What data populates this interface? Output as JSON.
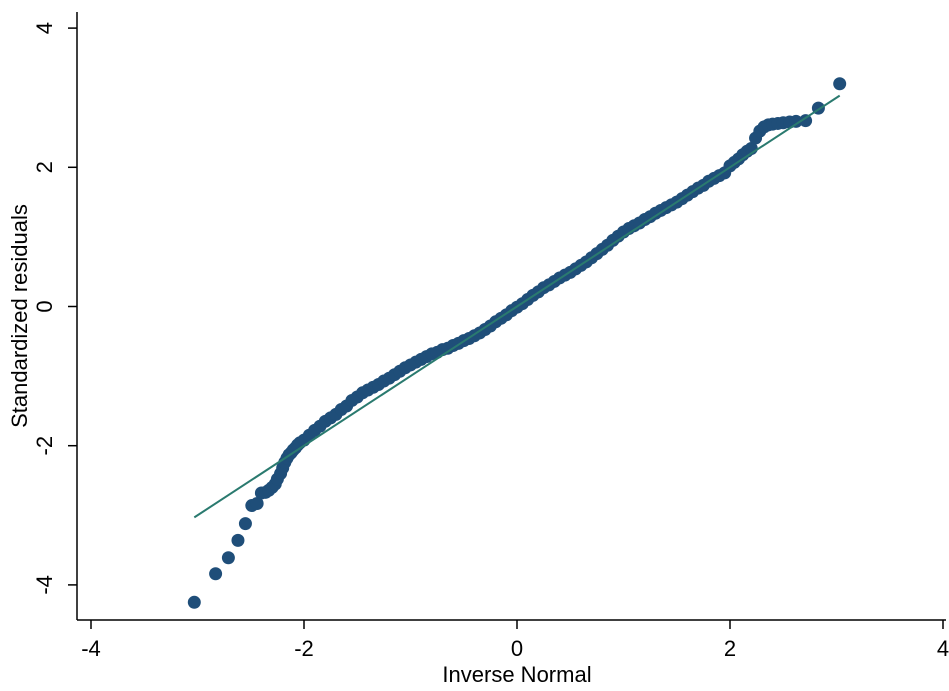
{
  "chart_data": {
    "type": "scatter",
    "title": "",
    "xlabel": "Inverse Normal",
    "ylabel": "Standardized residuals",
    "xlim": [
      -4,
      4
    ],
    "ylim": [
      -4,
      4
    ],
    "xticks": [
      -4,
      -2,
      0,
      2,
      4
    ],
    "yticks": [
      -4,
      -2,
      0,
      2,
      4
    ],
    "xtick_labels": [
      "-4",
      "-2",
      "0",
      "2",
      "4"
    ],
    "ytick_labels": [
      "-4",
      "-2",
      "0",
      "2",
      "4"
    ],
    "grid": false,
    "legend": "none",
    "colors": {
      "points": "#1f4e79",
      "reference_line": "#2a7a6f",
      "axis": "#000000"
    },
    "reference_line": {
      "x": [
        -3.03,
        3.03
      ],
      "y": [
        -3.03,
        3.03
      ]
    },
    "series": [
      {
        "x": [
          -3.03,
          -2.83,
          -2.71,
          -2.62,
          -2.55,
          -2.49,
          -2.44,
          -2.4,
          -2.36,
          -2.33,
          -2.3,
          -2.27,
          -2.25,
          -2.22,
          -2.2,
          -2.18,
          -2.16,
          -2.14,
          -2.12,
          -2.1,
          -2.08,
          -2.06,
          -2.04,
          -2.0,
          -1.95,
          -1.9,
          -1.85,
          -1.8,
          -1.75,
          -1.7,
          -1.65,
          -1.6,
          -1.55,
          -1.5,
          -1.45,
          -1.4,
          -1.35,
          -1.3,
          -1.25,
          -1.2,
          -1.15,
          -1.1,
          -1.05,
          -1.0,
          -0.95,
          -0.9,
          -0.85,
          -0.8,
          -0.75,
          -0.7,
          -0.65,
          -0.6,
          -0.55,
          -0.5,
          -0.45,
          -0.4,
          -0.35,
          -0.3,
          -0.25,
          -0.2,
          -0.15,
          -0.1,
          -0.05,
          0.0,
          0.05,
          0.1,
          0.15,
          0.2,
          0.25,
          0.3,
          0.35,
          0.4,
          0.45,
          0.5,
          0.55,
          0.6,
          0.65,
          0.7,
          0.75,
          0.8,
          0.85,
          0.9,
          0.95,
          1.0,
          1.05,
          1.1,
          1.15,
          1.2,
          1.25,
          1.3,
          1.35,
          1.4,
          1.45,
          1.5,
          1.55,
          1.6,
          1.65,
          1.7,
          1.75,
          1.8,
          1.85,
          1.9,
          1.95,
          2.0,
          2.04,
          2.08,
          2.12,
          2.16,
          2.2,
          2.24,
          2.28,
          2.32,
          2.36,
          2.4,
          2.45,
          2.5,
          2.56,
          2.62,
          2.71,
          2.83,
          3.03
        ],
        "y": [
          -4.25,
          -3.84,
          -3.61,
          -3.36,
          -3.12,
          -2.86,
          -2.83,
          -2.68,
          -2.67,
          -2.64,
          -2.6,
          -2.55,
          -2.48,
          -2.4,
          -2.32,
          -2.24,
          -2.18,
          -2.13,
          -2.1,
          -2.06,
          -2.03,
          -1.99,
          -1.96,
          -1.92,
          -1.85,
          -1.78,
          -1.72,
          -1.65,
          -1.6,
          -1.55,
          -1.48,
          -1.43,
          -1.35,
          -1.3,
          -1.24,
          -1.2,
          -1.16,
          -1.12,
          -1.07,
          -1.03,
          -0.98,
          -0.93,
          -0.88,
          -0.84,
          -0.8,
          -0.76,
          -0.72,
          -0.68,
          -0.66,
          -0.62,
          -0.6,
          -0.56,
          -0.53,
          -0.49,
          -0.46,
          -0.42,
          -0.38,
          -0.33,
          -0.28,
          -0.22,
          -0.17,
          -0.12,
          -0.06,
          -0.01,
          0.04,
          0.1,
          0.16,
          0.21,
          0.27,
          0.31,
          0.36,
          0.41,
          0.45,
          0.49,
          0.54,
          0.59,
          0.64,
          0.7,
          0.76,
          0.82,
          0.88,
          0.95,
          1.01,
          1.07,
          1.12,
          1.16,
          1.2,
          1.25,
          1.29,
          1.34,
          1.38,
          1.42,
          1.46,
          1.5,
          1.55,
          1.6,
          1.65,
          1.7,
          1.74,
          1.8,
          1.84,
          1.88,
          1.92,
          2.02,
          2.07,
          2.12,
          2.18,
          2.23,
          2.27,
          2.42,
          2.52,
          2.58,
          2.61,
          2.62,
          2.63,
          2.64,
          2.65,
          2.66,
          2.67,
          2.85,
          3.2
        ]
      }
    ]
  }
}
